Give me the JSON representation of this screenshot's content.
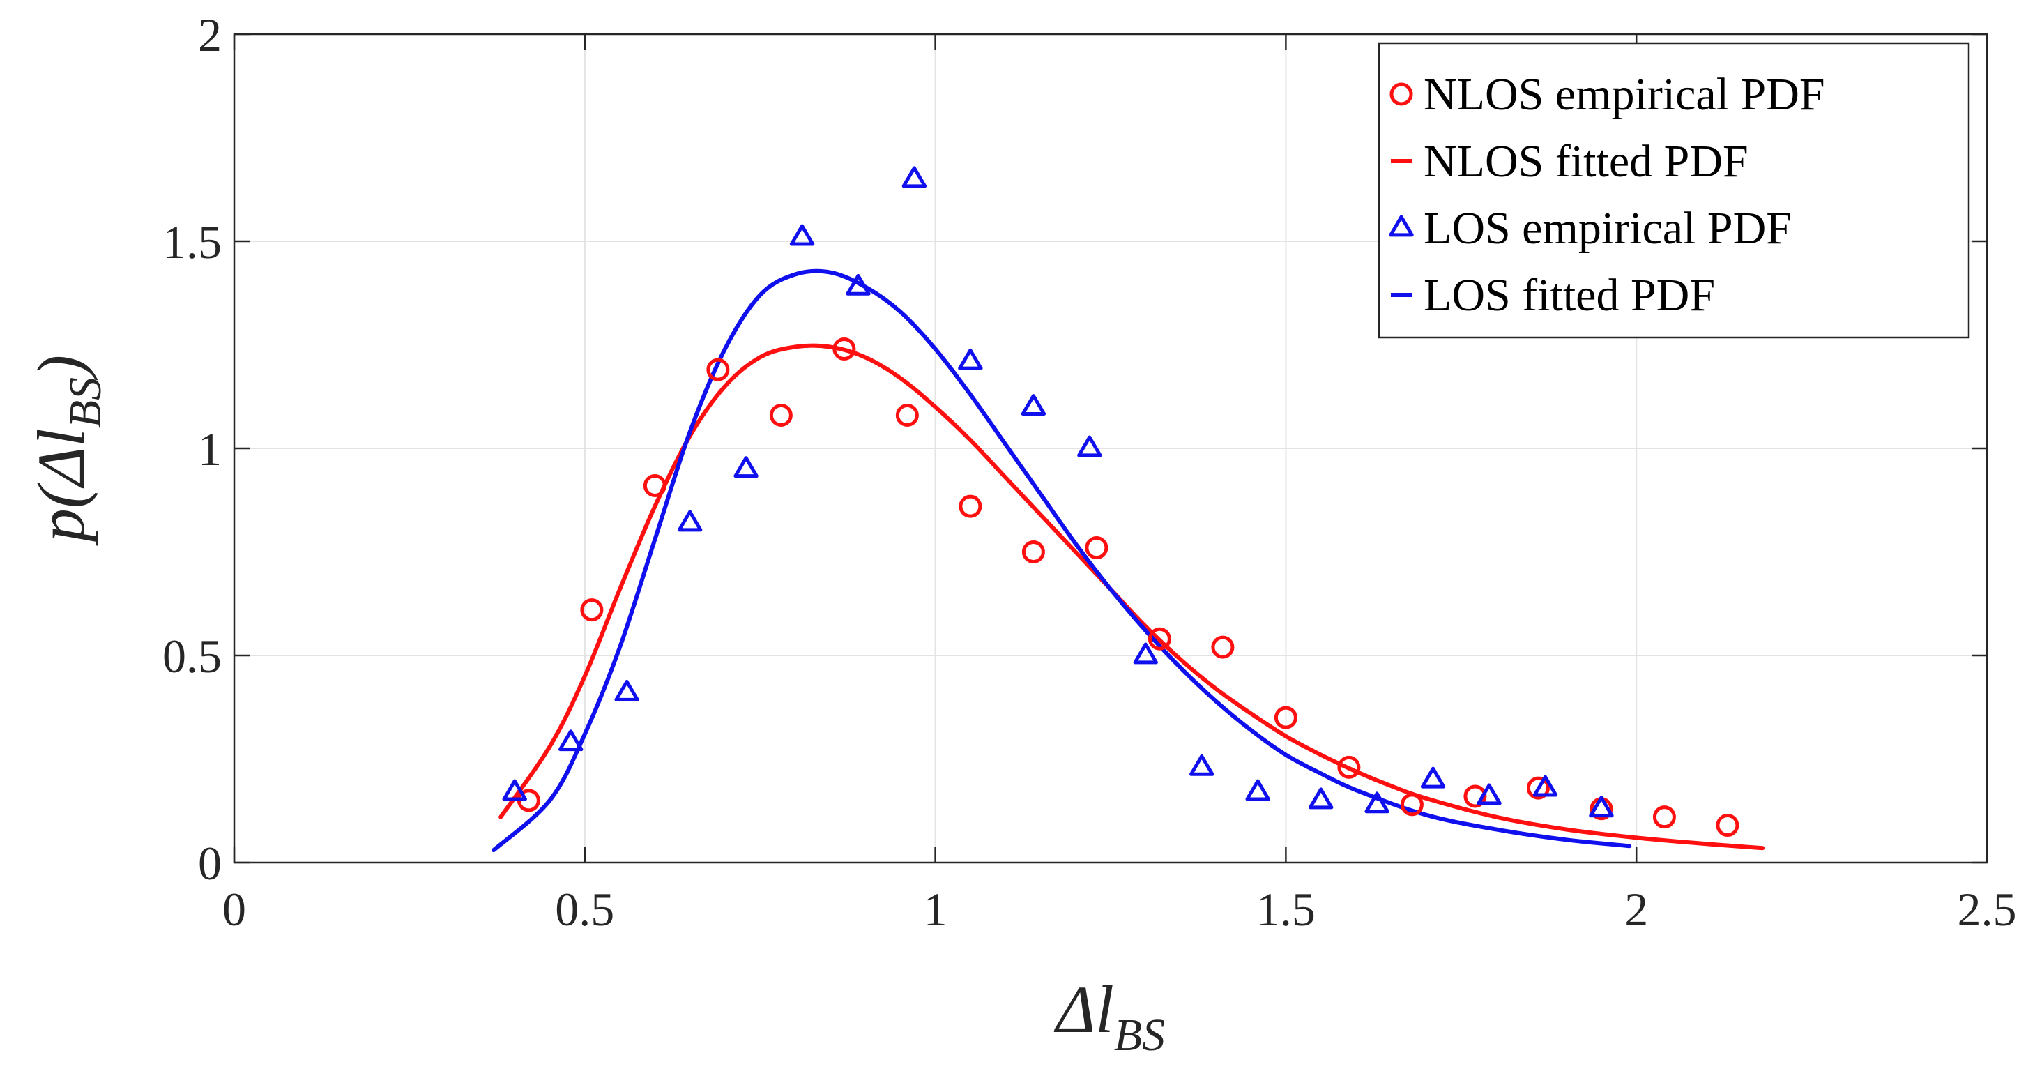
{
  "chart_data": {
    "type": "scatter",
    "title": "",
    "xlabel": "Δl_BS",
    "ylabel": "p(Δl_BS)",
    "xlim": [
      0,
      2.5
    ],
    "ylim": [
      0,
      2
    ],
    "grid": true,
    "legend_position": "top-right",
    "x_ticks": [
      "0",
      "0.5",
      "1",
      "1.5",
      "2",
      "2.5"
    ],
    "y_ticks": [
      "0",
      "0.5",
      "1",
      "1.5",
      "2"
    ],
    "x_tick_values": [
      0,
      0.5,
      1,
      1.5,
      2,
      2.5
    ],
    "y_tick_values": [
      0,
      0.5,
      1,
      1.5,
      2
    ],
    "series": [
      {
        "name": "NLOS empirical PDF",
        "kind": "marker",
        "marker": "circle",
        "color": "#ff1010",
        "x": [
          0.42,
          0.51,
          0.6,
          0.69,
          0.78,
          0.87,
          0.96,
          1.05,
          1.14,
          1.23,
          1.32,
          1.41,
          1.5,
          1.59,
          1.68,
          1.77,
          1.86,
          1.95,
          2.04,
          2.13
        ],
        "y": [
          0.15,
          0.61,
          0.91,
          1.19,
          1.08,
          1.24,
          1.08,
          0.86,
          0.75,
          0.76,
          0.54,
          0.52,
          0.35,
          0.23,
          0.14,
          0.16,
          0.18,
          0.13,
          0.11,
          0.09
        ]
      },
      {
        "name": "NLOS fitted PDF",
        "kind": "line",
        "color": "#ff1010",
        "x": [
          0.38,
          0.45,
          0.5,
          0.55,
          0.6,
          0.65,
          0.7,
          0.75,
          0.8,
          0.85,
          0.9,
          0.95,
          1.0,
          1.05,
          1.1,
          1.15,
          1.2,
          1.25,
          1.3,
          1.35,
          1.4,
          1.45,
          1.5,
          1.55,
          1.6,
          1.65,
          1.7,
          1.8,
          1.9,
          2.0,
          2.1,
          2.18
        ],
        "y": [
          0.11,
          0.28,
          0.45,
          0.66,
          0.86,
          1.03,
          1.15,
          1.22,
          1.245,
          1.245,
          1.22,
          1.17,
          1.1,
          1.02,
          0.93,
          0.84,
          0.75,
          0.66,
          0.57,
          0.49,
          0.42,
          0.36,
          0.305,
          0.26,
          0.22,
          0.185,
          0.155,
          0.11,
          0.08,
          0.06,
          0.045,
          0.035
        ]
      },
      {
        "name": "LOS empirical PDF",
        "kind": "marker",
        "marker": "triangle",
        "color": "#1010ee",
        "x": [
          0.4,
          0.48,
          0.56,
          0.65,
          0.73,
          0.81,
          0.89,
          0.97,
          1.05,
          1.14,
          1.22,
          1.3,
          1.38,
          1.46,
          1.55,
          1.63,
          1.71,
          1.79,
          1.87,
          1.95
        ],
        "y": [
          0.17,
          0.29,
          0.41,
          0.82,
          0.95,
          1.51,
          1.39,
          1.65,
          1.21,
          1.1,
          1.0,
          0.5,
          0.23,
          0.17,
          0.15,
          0.14,
          0.2,
          0.16,
          0.18,
          0.13
        ]
      },
      {
        "name": "LOS fitted PDF",
        "kind": "line",
        "color": "#1010ee",
        "x": [
          0.37,
          0.45,
          0.5,
          0.55,
          0.6,
          0.65,
          0.7,
          0.75,
          0.8,
          0.85,
          0.9,
          0.95,
          1.0,
          1.05,
          1.1,
          1.15,
          1.2,
          1.25,
          1.3,
          1.35,
          1.4,
          1.45,
          1.5,
          1.55,
          1.6,
          1.7,
          1.8,
          1.9,
          1.99
        ],
        "y": [
          0.03,
          0.15,
          0.31,
          0.52,
          0.78,
          1.04,
          1.24,
          1.37,
          1.42,
          1.425,
          1.39,
          1.33,
          1.24,
          1.13,
          1.01,
          0.89,
          0.77,
          0.66,
          0.56,
          0.47,
          0.39,
          0.32,
          0.26,
          0.215,
          0.175,
          0.115,
          0.08,
          0.055,
          0.04
        ]
      }
    ]
  }
}
